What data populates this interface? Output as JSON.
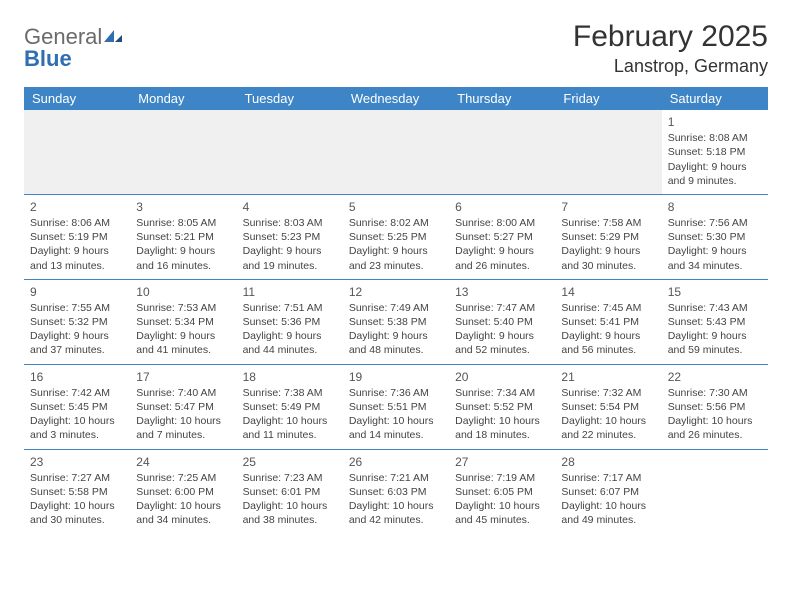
{
  "brand": {
    "word1": "General",
    "word2": "Blue"
  },
  "title": "February 2025",
  "location": "Lanstrop, Germany",
  "colors": {
    "header_bg": "#3d85c6",
    "header_fg": "#ffffff",
    "rule": "#3d85c6",
    "logo_gray": "#6b6b6b",
    "logo_blue": "#2f6fb0"
  },
  "weekdays": [
    "Sunday",
    "Monday",
    "Tuesday",
    "Wednesday",
    "Thursday",
    "Friday",
    "Saturday"
  ],
  "weeks": [
    [
      null,
      null,
      null,
      null,
      null,
      null,
      {
        "n": "1",
        "sr": "Sunrise: 8:08 AM",
        "ss": "Sunset: 5:18 PM",
        "d1": "Daylight: 9 hours",
        "d2": "and 9 minutes."
      }
    ],
    [
      {
        "n": "2",
        "sr": "Sunrise: 8:06 AM",
        "ss": "Sunset: 5:19 PM",
        "d1": "Daylight: 9 hours",
        "d2": "and 13 minutes."
      },
      {
        "n": "3",
        "sr": "Sunrise: 8:05 AM",
        "ss": "Sunset: 5:21 PM",
        "d1": "Daylight: 9 hours",
        "d2": "and 16 minutes."
      },
      {
        "n": "4",
        "sr": "Sunrise: 8:03 AM",
        "ss": "Sunset: 5:23 PM",
        "d1": "Daylight: 9 hours",
        "d2": "and 19 minutes."
      },
      {
        "n": "5",
        "sr": "Sunrise: 8:02 AM",
        "ss": "Sunset: 5:25 PM",
        "d1": "Daylight: 9 hours",
        "d2": "and 23 minutes."
      },
      {
        "n": "6",
        "sr": "Sunrise: 8:00 AM",
        "ss": "Sunset: 5:27 PM",
        "d1": "Daylight: 9 hours",
        "d2": "and 26 minutes."
      },
      {
        "n": "7",
        "sr": "Sunrise: 7:58 AM",
        "ss": "Sunset: 5:29 PM",
        "d1": "Daylight: 9 hours",
        "d2": "and 30 minutes."
      },
      {
        "n": "8",
        "sr": "Sunrise: 7:56 AM",
        "ss": "Sunset: 5:30 PM",
        "d1": "Daylight: 9 hours",
        "d2": "and 34 minutes."
      }
    ],
    [
      {
        "n": "9",
        "sr": "Sunrise: 7:55 AM",
        "ss": "Sunset: 5:32 PM",
        "d1": "Daylight: 9 hours",
        "d2": "and 37 minutes."
      },
      {
        "n": "10",
        "sr": "Sunrise: 7:53 AM",
        "ss": "Sunset: 5:34 PM",
        "d1": "Daylight: 9 hours",
        "d2": "and 41 minutes."
      },
      {
        "n": "11",
        "sr": "Sunrise: 7:51 AM",
        "ss": "Sunset: 5:36 PM",
        "d1": "Daylight: 9 hours",
        "d2": "and 44 minutes."
      },
      {
        "n": "12",
        "sr": "Sunrise: 7:49 AM",
        "ss": "Sunset: 5:38 PM",
        "d1": "Daylight: 9 hours",
        "d2": "and 48 minutes."
      },
      {
        "n": "13",
        "sr": "Sunrise: 7:47 AM",
        "ss": "Sunset: 5:40 PM",
        "d1": "Daylight: 9 hours",
        "d2": "and 52 minutes."
      },
      {
        "n": "14",
        "sr": "Sunrise: 7:45 AM",
        "ss": "Sunset: 5:41 PM",
        "d1": "Daylight: 9 hours",
        "d2": "and 56 minutes."
      },
      {
        "n": "15",
        "sr": "Sunrise: 7:43 AM",
        "ss": "Sunset: 5:43 PM",
        "d1": "Daylight: 9 hours",
        "d2": "and 59 minutes."
      }
    ],
    [
      {
        "n": "16",
        "sr": "Sunrise: 7:42 AM",
        "ss": "Sunset: 5:45 PM",
        "d1": "Daylight: 10 hours",
        "d2": "and 3 minutes."
      },
      {
        "n": "17",
        "sr": "Sunrise: 7:40 AM",
        "ss": "Sunset: 5:47 PM",
        "d1": "Daylight: 10 hours",
        "d2": "and 7 minutes."
      },
      {
        "n": "18",
        "sr": "Sunrise: 7:38 AM",
        "ss": "Sunset: 5:49 PM",
        "d1": "Daylight: 10 hours",
        "d2": "and 11 minutes."
      },
      {
        "n": "19",
        "sr": "Sunrise: 7:36 AM",
        "ss": "Sunset: 5:51 PM",
        "d1": "Daylight: 10 hours",
        "d2": "and 14 minutes."
      },
      {
        "n": "20",
        "sr": "Sunrise: 7:34 AM",
        "ss": "Sunset: 5:52 PM",
        "d1": "Daylight: 10 hours",
        "d2": "and 18 minutes."
      },
      {
        "n": "21",
        "sr": "Sunrise: 7:32 AM",
        "ss": "Sunset: 5:54 PM",
        "d1": "Daylight: 10 hours",
        "d2": "and 22 minutes."
      },
      {
        "n": "22",
        "sr": "Sunrise: 7:30 AM",
        "ss": "Sunset: 5:56 PM",
        "d1": "Daylight: 10 hours",
        "d2": "and 26 minutes."
      }
    ],
    [
      {
        "n": "23",
        "sr": "Sunrise: 7:27 AM",
        "ss": "Sunset: 5:58 PM",
        "d1": "Daylight: 10 hours",
        "d2": "and 30 minutes."
      },
      {
        "n": "24",
        "sr": "Sunrise: 7:25 AM",
        "ss": "Sunset: 6:00 PM",
        "d1": "Daylight: 10 hours",
        "d2": "and 34 minutes."
      },
      {
        "n": "25",
        "sr": "Sunrise: 7:23 AM",
        "ss": "Sunset: 6:01 PM",
        "d1": "Daylight: 10 hours",
        "d2": "and 38 minutes."
      },
      {
        "n": "26",
        "sr": "Sunrise: 7:21 AM",
        "ss": "Sunset: 6:03 PM",
        "d1": "Daylight: 10 hours",
        "d2": "and 42 minutes."
      },
      {
        "n": "27",
        "sr": "Sunrise: 7:19 AM",
        "ss": "Sunset: 6:05 PM",
        "d1": "Daylight: 10 hours",
        "d2": "and 45 minutes."
      },
      {
        "n": "28",
        "sr": "Sunrise: 7:17 AM",
        "ss": "Sunset: 6:07 PM",
        "d1": "Daylight: 10 hours",
        "d2": "and 49 minutes."
      },
      null
    ]
  ]
}
